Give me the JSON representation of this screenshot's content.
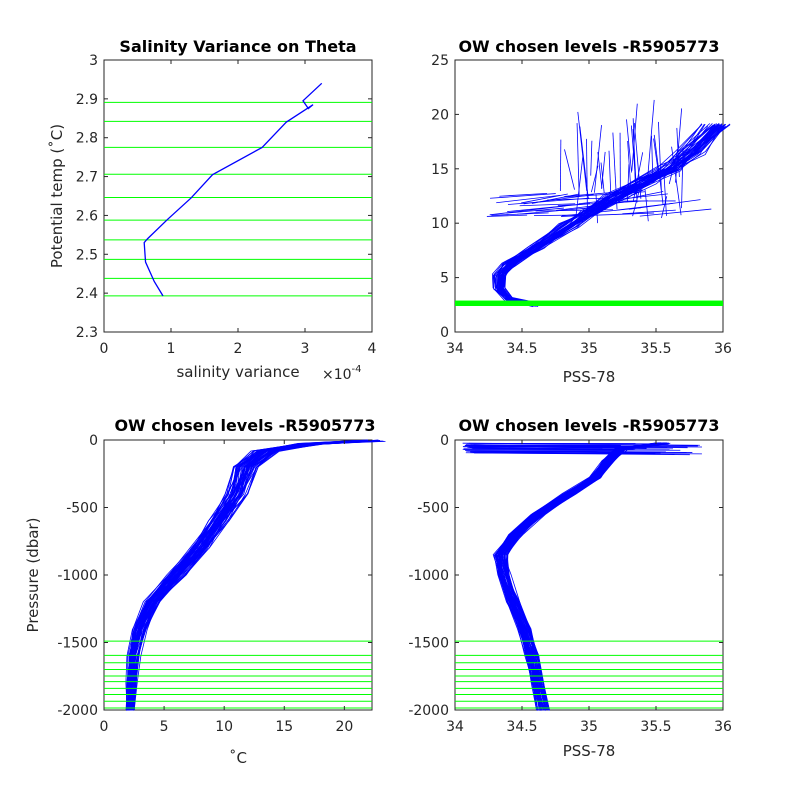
{
  "colors": {
    "profile": "#0000ff",
    "level": "#00ff00",
    "axis": "#262626"
  },
  "chart_data": [
    {
      "type": "line",
      "title": "Salinity Variance on Theta",
      "xlabel": "salinity variance",
      "x_exponent": "×10",
      "x_exponent_power": "-4",
      "ylabel": "Potential temp (˚C)",
      "xlim": [
        0,
        4
      ],
      "ylim": [
        2.3,
        3.0
      ],
      "xticks": [
        "0",
        "1",
        "2",
        "3",
        "4"
      ],
      "yticks": [
        "2.3",
        "2.4",
        "2.5",
        "2.6",
        "2.7",
        "2.8",
        "2.9",
        "3"
      ],
      "series": [
        {
          "x": [
            0.88,
            0.75,
            0.62,
            0.6,
            0.65,
            0.95,
            1.3,
            1.62,
            2.36,
            2.72,
            3.12,
            3.05,
            2.97,
            3.25
          ],
          "y": [
            2.393,
            2.43,
            2.48,
            2.53,
            2.54,
            2.59,
            2.645,
            2.705,
            2.775,
            2.84,
            2.885,
            2.875,
            2.895,
            2.94
          ]
        }
      ],
      "levels": [
        2.393,
        2.438,
        2.487,
        2.537,
        2.588,
        2.646,
        2.706,
        2.775,
        2.842,
        2.891
      ]
    },
    {
      "type": "line",
      "title": "OW chosen levels -R5905773",
      "xlabel": "PSS-78",
      "ylabel": "",
      "xlim": [
        34,
        36
      ],
      "ylim": [
        0,
        25
      ],
      "xticks": [
        "34",
        "34.5",
        "35",
        "35.5",
        "36"
      ],
      "yticks": [
        "0",
        "5",
        "10",
        "15",
        "20",
        "25"
      ],
      "envelope": [
        [
          34.6,
          2.5
        ],
        [
          34.4,
          3.0
        ],
        [
          34.33,
          4.0
        ],
        [
          34.33,
          5.2
        ],
        [
          34.4,
          6.2
        ],
        [
          34.6,
          7.8
        ],
        [
          34.85,
          9.8
        ],
        [
          35.0,
          11.0
        ],
        [
          35.2,
          12.5
        ],
        [
          35.4,
          13.8
        ],
        [
          35.6,
          15.0
        ],
        [
          35.75,
          16.5
        ],
        [
          35.95,
          19.0
        ]
      ],
      "levels_range": [
        2.39,
        2.89
      ]
    },
    {
      "type": "line",
      "title": "OW chosen levels -R5905773",
      "xlabel": "˚C",
      "ylabel": "Pressure (dbar)",
      "xlim": [
        0,
        22.3
      ],
      "ylim": [
        -2000,
        0
      ],
      "xticks": [
        "0",
        "5",
        "10",
        "15",
        "20"
      ],
      "yticks": [
        "-2000",
        "-1500",
        "-1000",
        "-500",
        "0"
      ],
      "envelope": [
        [
          2.2,
          -2000
        ],
        [
          2.3,
          -1800
        ],
        [
          2.5,
          -1600
        ],
        [
          3.0,
          -1400
        ],
        [
          4.0,
          -1200
        ],
        [
          6.0,
          -1000
        ],
        [
          8.0,
          -800
        ],
        [
          9.5,
          -600
        ],
        [
          11.0,
          -400
        ],
        [
          11.8,
          -200
        ],
        [
          13.5,
          -80
        ],
        [
          17.0,
          -30
        ],
        [
          22.0,
          -5
        ]
      ],
      "levels": [
        -1490,
        -1595,
        -1650,
        -1700,
        -1748,
        -1790,
        -1840,
        -1885,
        -1935,
        -1985
      ]
    },
    {
      "type": "line",
      "title": "OW chosen levels -R5905773",
      "xlabel": "PSS-78",
      "ylabel": "",
      "xlim": [
        34,
        36
      ],
      "ylim": [
        -2000,
        0
      ],
      "xticks": [
        "34",
        "34.5",
        "35",
        "35.5",
        "36"
      ],
      "yticks": [
        "-2000",
        "-1500",
        "-1000",
        "-500",
        "0"
      ],
      "envelope": [
        [
          34.66,
          -2000
        ],
        [
          34.62,
          -1800
        ],
        [
          34.58,
          -1600
        ],
        [
          34.52,
          -1400
        ],
        [
          34.44,
          -1200
        ],
        [
          34.36,
          -1000
        ],
        [
          34.34,
          -850
        ],
        [
          34.45,
          -700
        ],
        [
          34.62,
          -550
        ],
        [
          34.85,
          -400
        ],
        [
          35.05,
          -280
        ],
        [
          35.15,
          -150
        ],
        [
          35.25,
          -60
        ],
        [
          35.55,
          -25
        ]
      ],
      "levels": [
        -1490,
        -1595,
        -1650,
        -1700,
        -1748,
        -1790,
        -1840,
        -1885,
        -1935,
        -1985
      ]
    }
  ]
}
